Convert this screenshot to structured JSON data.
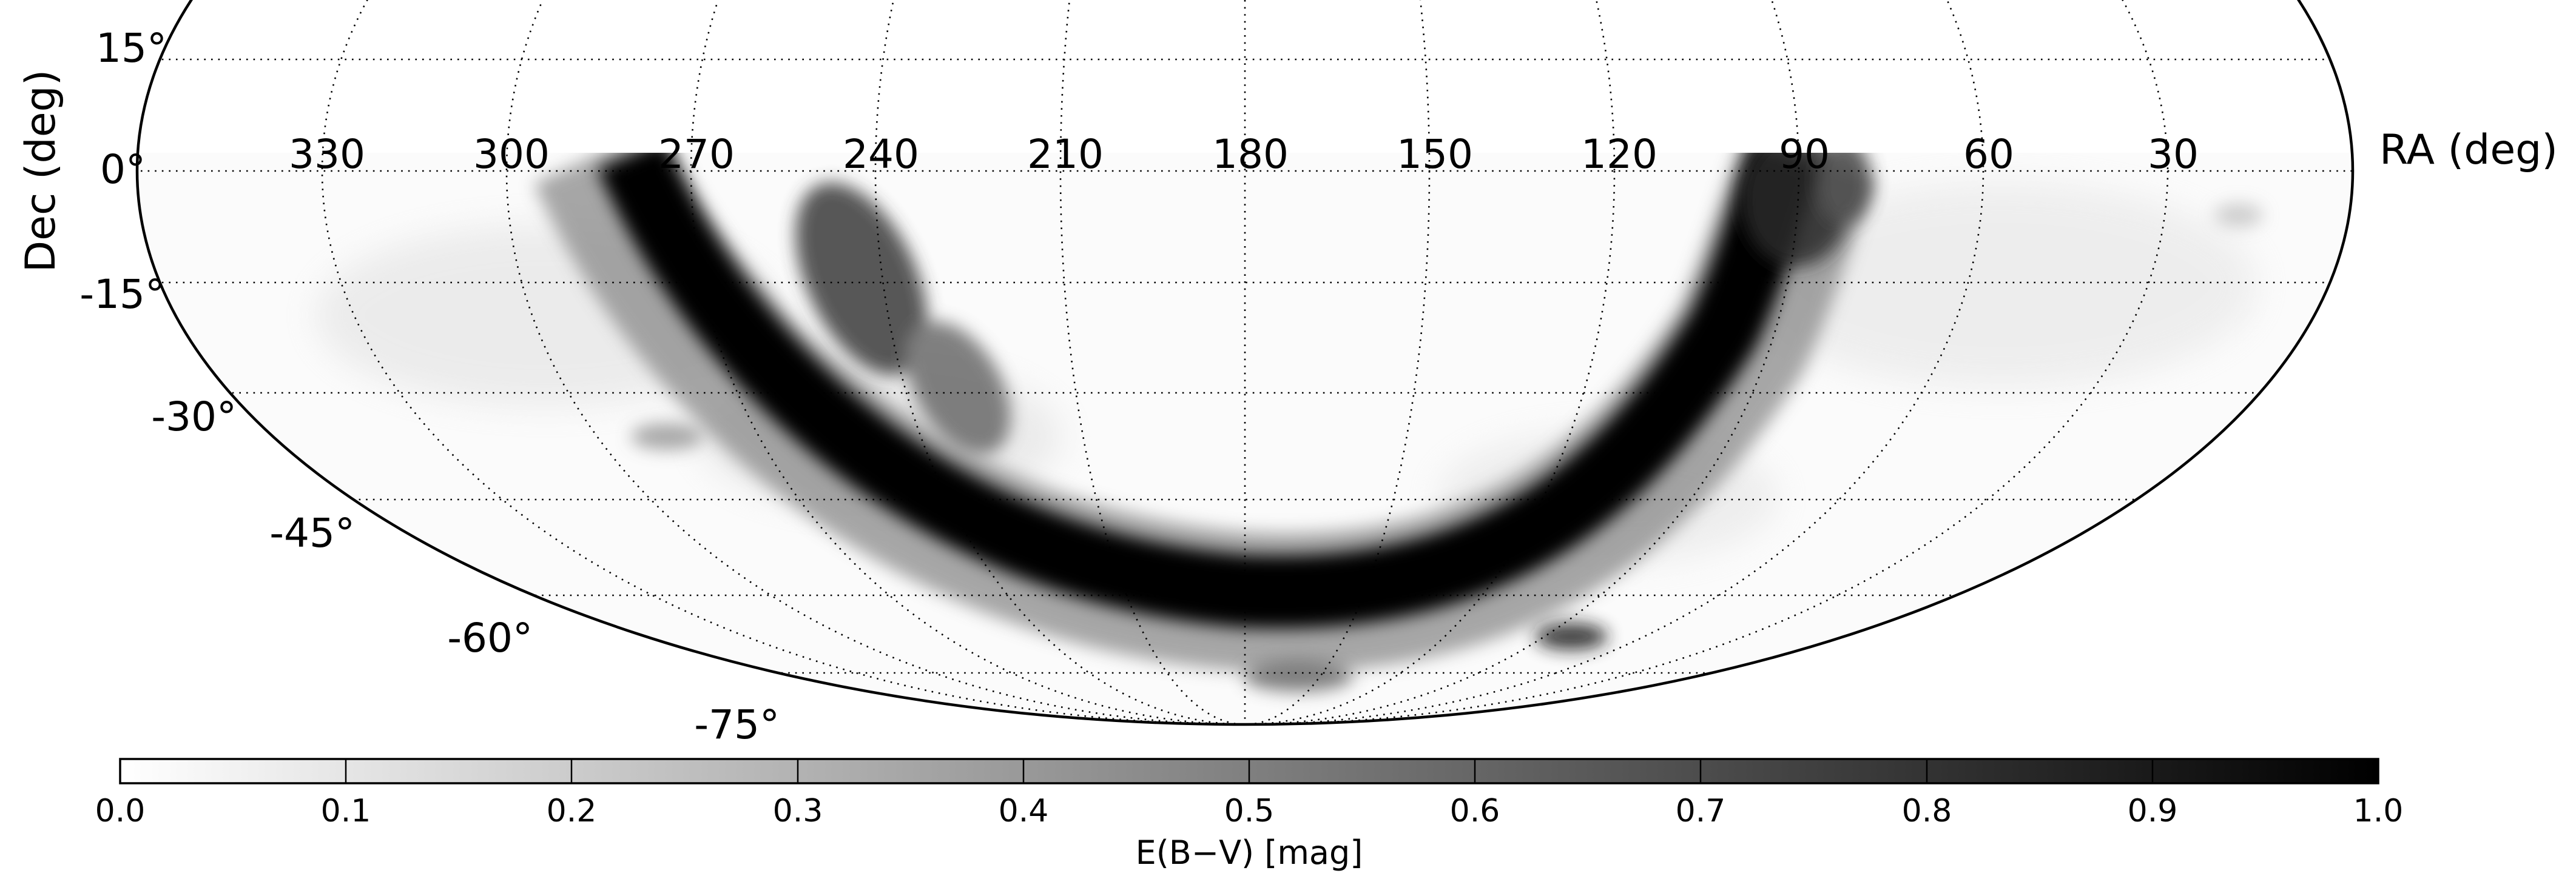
{
  "map": {
    "projection": "Mollweide",
    "visible_region": "declination up to about +30 deg, south to -90 deg",
    "background_color": "#ffffff",
    "dust_color": "#000000",
    "ra_axis_label": "RA (deg)",
    "dec_axis_label": "Dec (deg)",
    "ra_tick_labels": [
      "330",
      "300",
      "270",
      "240",
      "210",
      "180",
      "150",
      "120",
      "90",
      "60",
      "30"
    ],
    "dec_tick_labels": [
      "15°",
      "0°",
      "-15°",
      "-30°",
      "-45°",
      "-60°",
      "-75°"
    ],
    "gridline_style": "dotted",
    "feature": "dark band of Galactic-plane dust crossing the southern sky, plus smaller clouds near RA 60-90 and the Magellanic Clouds near Dec -70"
  },
  "colorbar": {
    "label": "E(B−V) [mag]",
    "min": 0.0,
    "max": 1.0,
    "colormap": "white-to-black",
    "tick_labels": [
      "0.0",
      "0.1",
      "0.2",
      "0.3",
      "0.4",
      "0.5",
      "0.6",
      "0.7",
      "0.8",
      "0.9",
      "1.0"
    ]
  }
}
